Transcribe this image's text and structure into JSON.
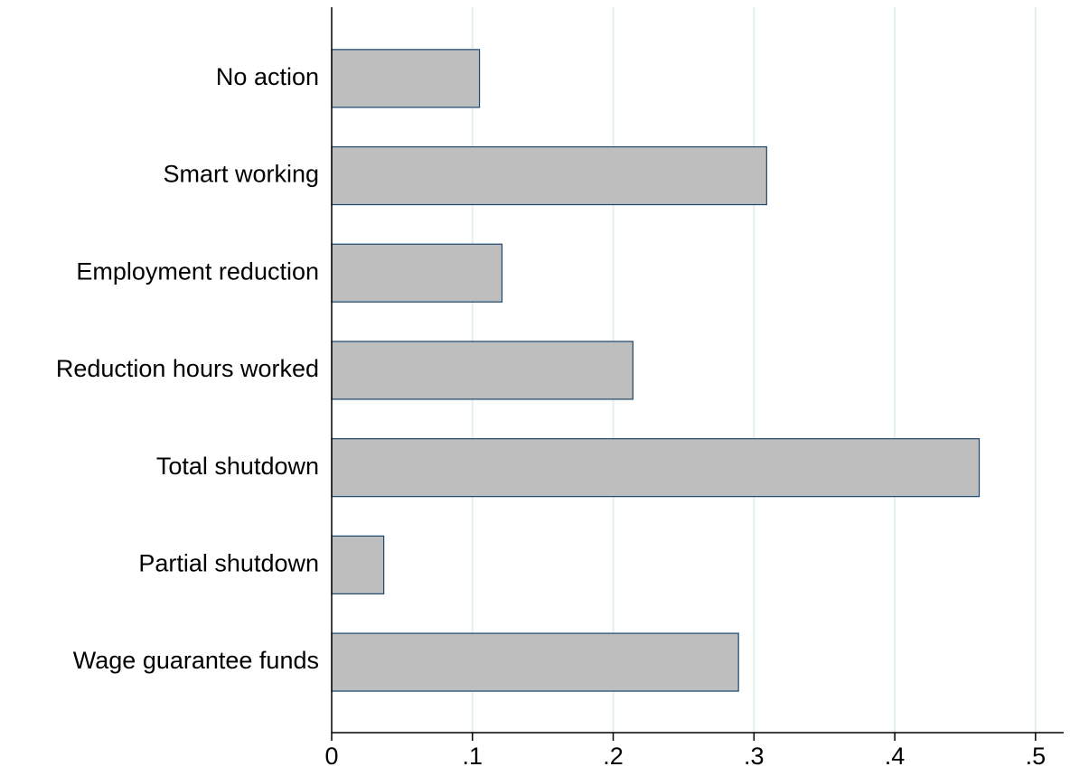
{
  "chart_data": {
    "type": "bar",
    "orientation": "horizontal",
    "categories": [
      "No action",
      "Smart working",
      "Employment reduction",
      "Reduction hours worked",
      "Total shutdown",
      "Partial shutdown",
      "Wage guarantee funds"
    ],
    "values": [
      0.105,
      0.309,
      0.121,
      0.214,
      0.46,
      0.037,
      0.289
    ],
    "color": "#bebebe",
    "edge_color": "#1a476f",
    "xlim": [
      0,
      0.52
    ],
    "xticks": [
      0,
      {
        "value": 0.1,
        "label": ".1"
      },
      {
        "value": 0.2,
        "label": ".2"
      },
      {
        "value": 0.3,
        "label": ".3"
      },
      {
        "value": 0.4,
        "label": ".4"
      },
      {
        "value": 0.5,
        "label": ".5"
      }
    ],
    "grid": true,
    "grid_color": "#e3eeee"
  }
}
